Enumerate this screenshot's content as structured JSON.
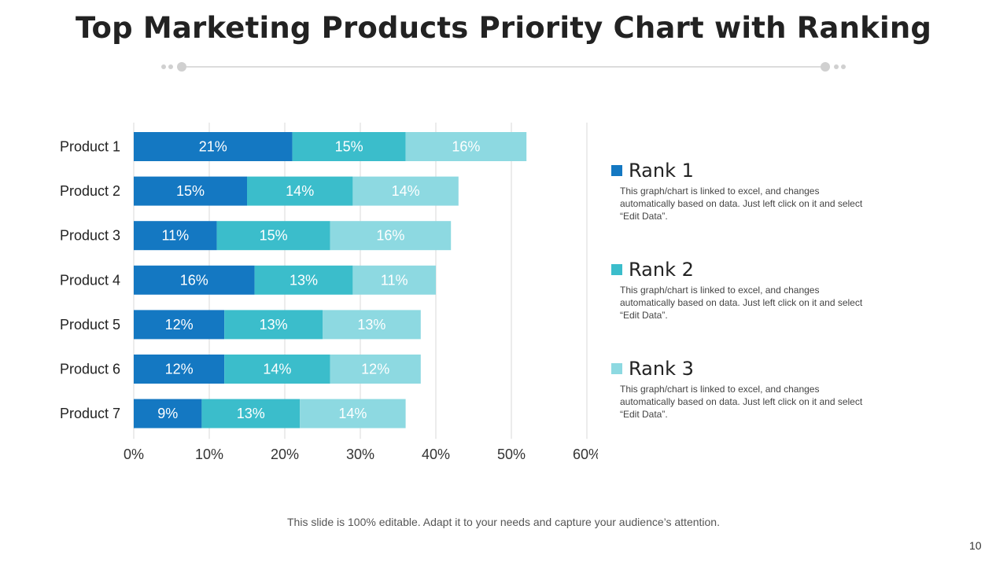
{
  "slide": {
    "title": "Top Marketing Products Priority Chart with Ranking",
    "footer": "This slide is 100% editable. Adapt it to your needs and capture your audience’s attention.",
    "page_number": "10"
  },
  "colors": {
    "rank1": "#1478c2",
    "rank2": "#3bbdcb",
    "rank3": "#8dd9e1",
    "title": "#222222",
    "divider": "#d0d0d0"
  },
  "legend": [
    {
      "name": "Rank 1",
      "desc": "This graph/chart is linked to excel, and changes automatically based on data. Just left click on it and select “Edit Data”."
    },
    {
      "name": "Rank 2",
      "desc": "This graph/chart is linked to excel, and changes automatically based on data. Just left click on it and select “Edit Data”."
    },
    {
      "name": "Rank 3",
      "desc": "This graph/chart is linked to excel, and changes automatically based on data. Just left click on it and select “Edit Data”."
    }
  ],
  "chart_data": {
    "type": "bar",
    "orientation": "horizontal",
    "stacked": true,
    "categories": [
      "Product 1",
      "Product 2",
      "Product 3",
      "Product 4",
      "Product 5",
      "Product 6",
      "Product 7"
    ],
    "series": [
      {
        "name": "Rank 1",
        "values": [
          21,
          15,
          11,
          16,
          12,
          12,
          9
        ]
      },
      {
        "name": "Rank 2",
        "values": [
          15,
          14,
          15,
          13,
          13,
          14,
          13
        ]
      },
      {
        "name": "Rank 3",
        "values": [
          16,
          14,
          16,
          11,
          13,
          12,
          14
        ]
      }
    ],
    "xlim": [
      0,
      60
    ],
    "xticks": [
      0,
      10,
      20,
      30,
      40,
      50,
      60
    ],
    "tick_suffix": "%",
    "value_suffix": "%",
    "grid": true,
    "legend_position": "right"
  }
}
